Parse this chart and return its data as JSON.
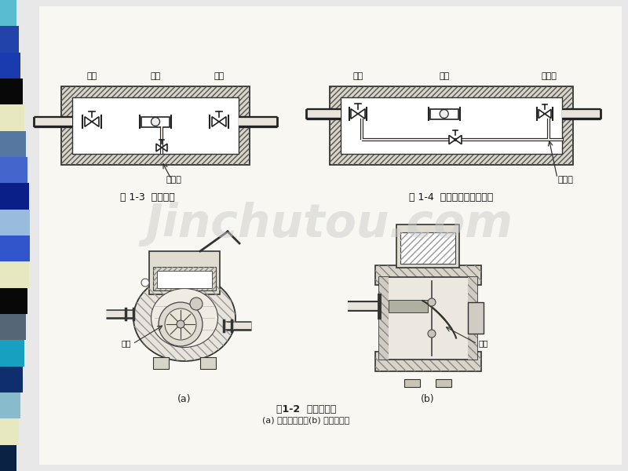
{
  "bg_color": "#e8e8e8",
  "page_bg": "#f8f7f2",
  "watermark_text": "Jinchutou.com",
  "stripe_colors": [
    "#5abcd0",
    "#2244aa",
    "#1a3bb0",
    "#080808",
    "#e8e8c0",
    "#5577a0",
    "#4466cc",
    "#0a1f88",
    "#99bbdd",
    "#3355cc",
    "#e8e8c0",
    "#080808",
    "#556677",
    "#18a0c0",
    "#0f2e6e",
    "#88bbcc",
    "#e8e8c0",
    "#0a2244"
  ],
  "caption_fig12": "图1-2  流速式水表",
  "caption_fig12_sub": "(a) 旋翼式水表；(b) 螺翼式水表",
  "caption_a": "(a)",
  "caption_b": "(b)",
  "label_impeller_a": "叶轮",
  "label_impeller_b": "叶轮",
  "fig3_label_valve1": "阀门",
  "fig3_label_meter": "水表",
  "fig3_label_valve2": "阀门",
  "fig3_label_drain": "泄水口",
  "fig3_caption": "图 1-3  水表节点",
  "fig4_label_valve": "阀门",
  "fig4_label_meter": "水表",
  "fig4_label_drain": "泄水口",
  "fig4_label_bypass": "旁通管",
  "fig4_caption": "图 1-4  有旁通管的水表节点"
}
